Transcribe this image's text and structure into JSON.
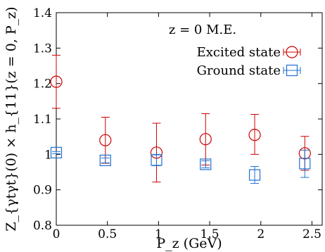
{
  "chart_data": {
    "type": "scatter",
    "annotation": "z = 0 M.E.",
    "xlabel": "P_z (GeV)",
    "ylabel": "Z_{γtγt}(0) × h_{11}(z = 0, P_z)",
    "xlim": [
      0,
      2.6
    ],
    "ylim": [
      0.8,
      1.4
    ],
    "xticks": [
      0,
      0.5,
      1,
      1.5,
      2,
      2.5
    ],
    "xtick_labels": [
      "0",
      "0.5",
      "1",
      "1.5",
      "2",
      "2.5"
    ],
    "yticks": [
      0.8,
      0.9,
      1.0,
      1.1,
      1.2,
      1.3,
      1.4
    ],
    "ytick_labels": [
      "0.8",
      "0.9",
      "1",
      "1.1",
      "1.2",
      "1.3",
      "1.4"
    ],
    "grid": false,
    "legend_position": "top-right",
    "series": [
      {
        "name": "Excited state",
        "marker": "circle",
        "color": "#cc0000",
        "points": [
          {
            "x": 0.0,
            "y": 1.205,
            "yerr_low": 1.13,
            "yerr_high": 1.28
          },
          {
            "x": 0.48,
            "y": 1.04,
            "yerr_low": 0.975,
            "yerr_high": 1.105
          },
          {
            "x": 0.98,
            "y": 1.005,
            "yerr_low": 0.922,
            "yerr_high": 1.088
          },
          {
            "x": 1.46,
            "y": 1.043,
            "yerr_low": 0.97,
            "yerr_high": 1.115
          },
          {
            "x": 1.94,
            "y": 1.055,
            "yerr_low": 1.0,
            "yerr_high": 1.113
          },
          {
            "x": 2.43,
            "y": 1.003,
            "yerr_low": 0.955,
            "yerr_high": 1.051
          }
        ]
      },
      {
        "name": "Ground state",
        "marker": "square",
        "color": "#1f6fd1",
        "points": [
          {
            "x": 0.0,
            "y": 1.005,
            "yerr_low": 1.002,
            "yerr_high": 1.008
          },
          {
            "x": 0.48,
            "y": 0.983,
            "yerr_low": 0.976,
            "yerr_high": 0.99
          },
          {
            "x": 0.98,
            "y": 0.984,
            "yerr_low": 0.968,
            "yerr_high": 1.0
          },
          {
            "x": 1.46,
            "y": 0.972,
            "yerr_low": 0.962,
            "yerr_high": 0.982
          },
          {
            "x": 1.94,
            "y": 0.942,
            "yerr_low": 0.918,
            "yerr_high": 0.966
          },
          {
            "x": 2.43,
            "y": 0.974,
            "yerr_low": 0.935,
            "yerr_high": 1.012
          }
        ]
      }
    ]
  }
}
